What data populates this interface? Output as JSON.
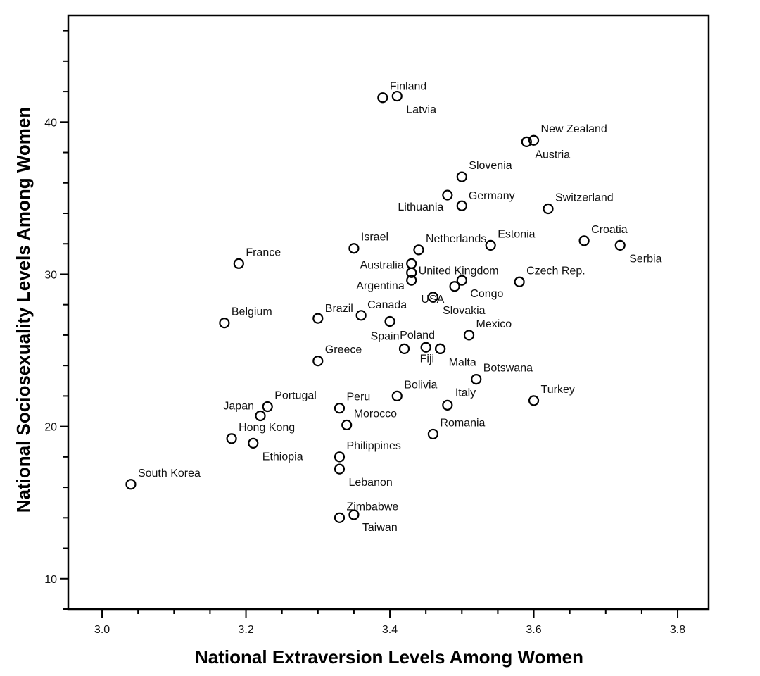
{
  "chart_data": {
    "type": "scatter",
    "title": "",
    "xlabel": "National Extraversion Levels Among Women",
    "ylabel": "National Sociosexuality Levels Among Women",
    "xlim": [
      2.953,
      3.843
    ],
    "ylim": [
      8.0,
      47.0
    ],
    "xticks": [
      "3.0",
      "3.2",
      "3.4",
      "3.6",
      "3.8"
    ],
    "xtick_values": [
      3.0,
      3.2,
      3.4,
      3.6,
      3.8
    ],
    "xminor_step": 0.05,
    "yticks": [
      "10",
      "20",
      "30",
      "40"
    ],
    "ytick_values": [
      10,
      20,
      30,
      40
    ],
    "yminor_step": 2,
    "grid": false,
    "marker": "open-circle",
    "points": [
      {
        "label": "Finland",
        "x": 3.39,
        "y": 41.6
      },
      {
        "label": "Latvia",
        "x": 3.41,
        "y": 41.7
      },
      {
        "label": "New Zealand",
        "x": 3.6,
        "y": 38.8
      },
      {
        "label": "Austria",
        "x": 3.59,
        "y": 38.7
      },
      {
        "label": "Slovenia",
        "x": 3.5,
        "y": 36.4
      },
      {
        "label": "Germany",
        "x": 3.48,
        "y": 35.2
      },
      {
        "label": "Lithuania",
        "x": 3.5,
        "y": 34.5
      },
      {
        "label": "Switzerland",
        "x": 3.62,
        "y": 34.3
      },
      {
        "label": "Croatia",
        "x": 3.67,
        "y": 32.2
      },
      {
        "label": "Serbia",
        "x": 3.72,
        "y": 31.9
      },
      {
        "label": "Estonia",
        "x": 3.54,
        "y": 31.9
      },
      {
        "label": "Netherlands",
        "x": 3.44,
        "y": 31.6
      },
      {
        "label": "Israel",
        "x": 3.35,
        "y": 31.7
      },
      {
        "label": "France",
        "x": 3.19,
        "y": 30.7
      },
      {
        "label": "Australia",
        "x": 3.43,
        "y": 30.7
      },
      {
        "label": "United Kingdom",
        "x": 3.43,
        "y": 30.1
      },
      {
        "label": "Argentina",
        "x": 3.43,
        "y": 29.6
      },
      {
        "label": "Czech Rep.",
        "x": 3.58,
        "y": 29.5
      },
      {
        "label": "Congo",
        "x": 3.5,
        "y": 29.6
      },
      {
        "label": "Slovakia",
        "x": 3.49,
        "y": 29.2
      },
      {
        "label": "USA",
        "x": 3.46,
        "y": 28.5
      },
      {
        "label": "Belgium",
        "x": 3.17,
        "y": 26.8
      },
      {
        "label": "Brazil",
        "x": 3.3,
        "y": 27.1
      },
      {
        "label": "Canada",
        "x": 3.36,
        "y": 27.3
      },
      {
        "label": "",
        "x": 3.4,
        "y": 26.9
      },
      {
        "label": "Mexico",
        "x": 3.51,
        "y": 26.0
      },
      {
        "label": "Spain",
        "x": 3.42,
        "y": 25.1
      },
      {
        "label": "Poland",
        "x": 3.45,
        "y": 25.2
      },
      {
        "label": "Fiji",
        "x": 3.47,
        "y": 25.1
      },
      {
        "label": "Malta",
        "x": 3.47,
        "y": 25.1
      },
      {
        "label": "Greece",
        "x": 3.3,
        "y": 24.3
      },
      {
        "label": "Botswana",
        "x": 3.52,
        "y": 23.1
      },
      {
        "label": "Turkey",
        "x": 3.6,
        "y": 21.7
      },
      {
        "label": "Bolivia",
        "x": 3.41,
        "y": 22.0
      },
      {
        "label": "Italy",
        "x": 3.48,
        "y": 21.4
      },
      {
        "label": "Peru",
        "x": 3.33,
        "y": 21.2
      },
      {
        "label": "Morocco",
        "x": 3.34,
        "y": 20.1
      },
      {
        "label": "Romania",
        "x": 3.46,
        "y": 19.5
      },
      {
        "label": "Portugal",
        "x": 3.23,
        "y": 21.3
      },
      {
        "label": "Japan",
        "x": 3.22,
        "y": 20.7
      },
      {
        "label": "Hong Kong",
        "x": 3.18,
        "y": 19.2
      },
      {
        "label": "Ethiopia",
        "x": 3.21,
        "y": 18.9
      },
      {
        "label": "Philippines",
        "x": 3.33,
        "y": 18.0
      },
      {
        "label": "Lebanon",
        "x": 3.33,
        "y": 17.2
      },
      {
        "label": "Zimbabwe",
        "x": 3.33,
        "y": 14.0
      },
      {
        "label": "Taiwan",
        "x": 3.35,
        "y": 14.2
      },
      {
        "label": "South Korea",
        "x": 3.04,
        "y": 16.2
      }
    ]
  }
}
